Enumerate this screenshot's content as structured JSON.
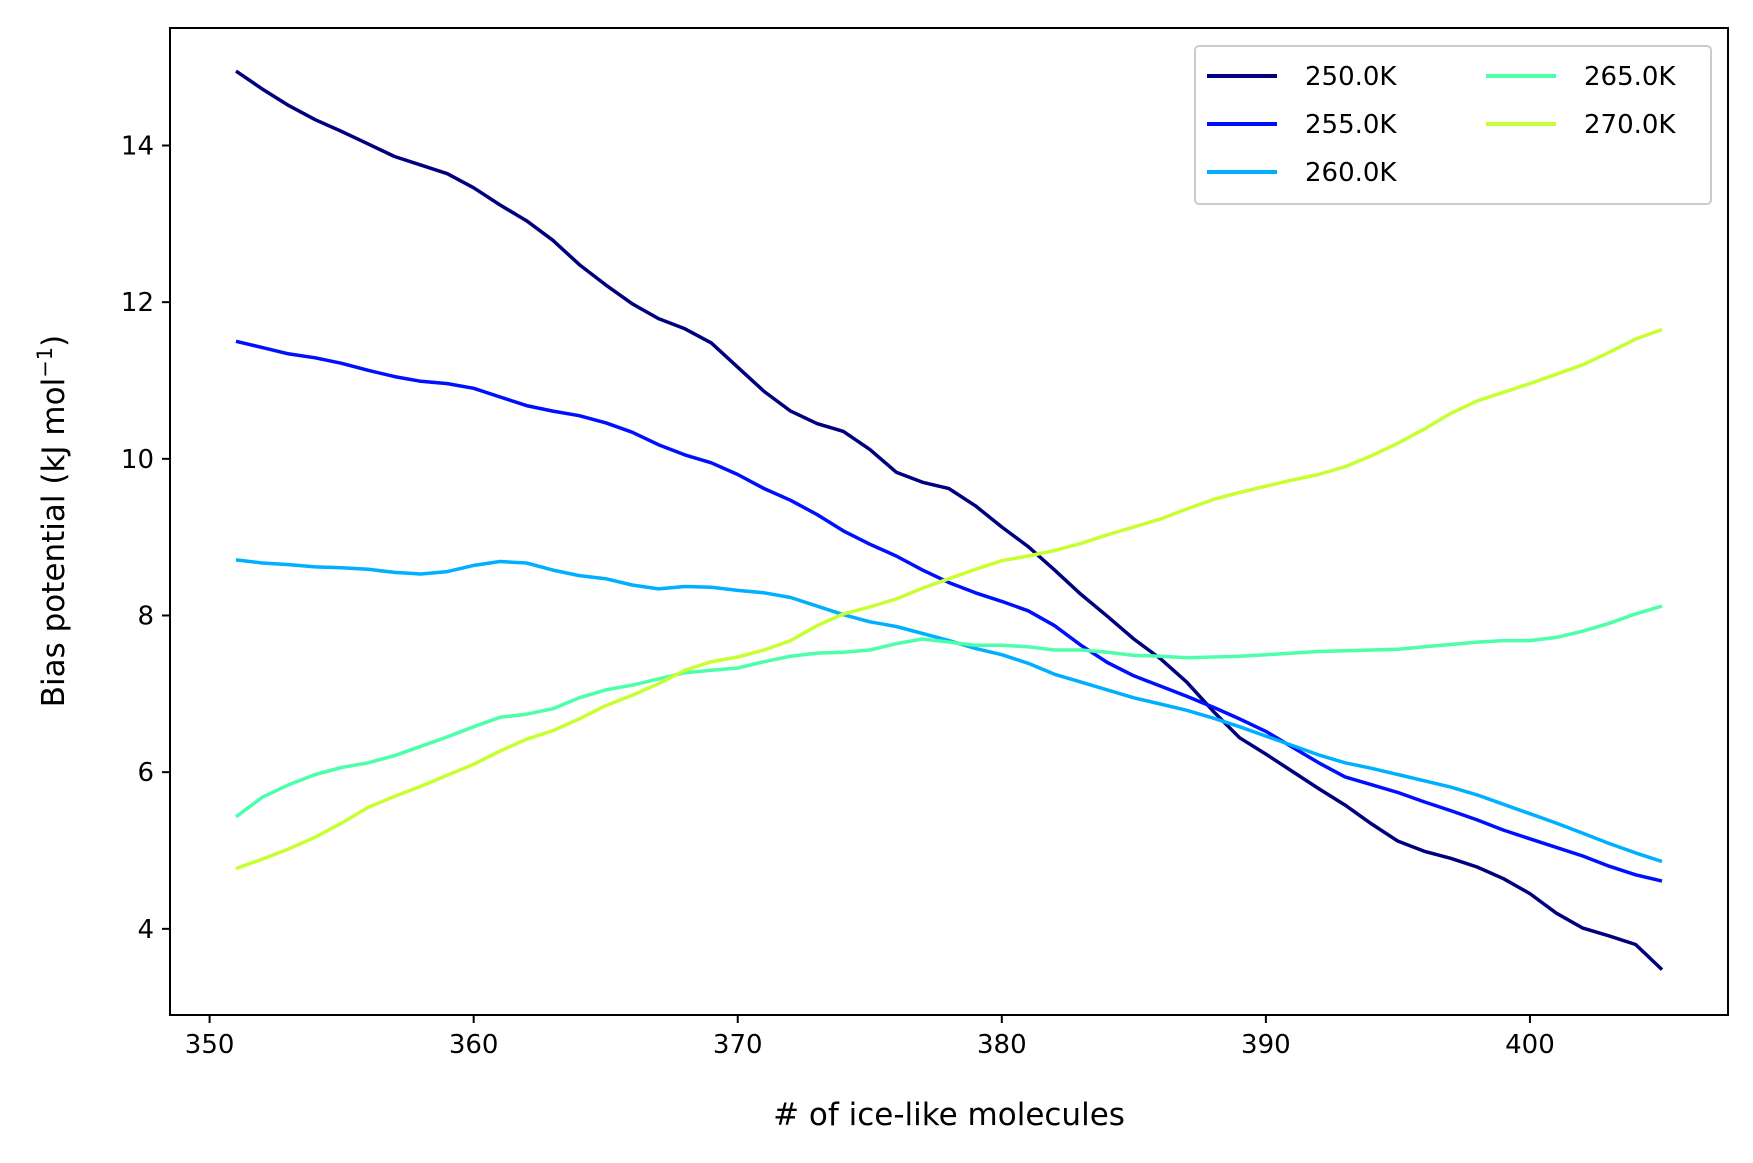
{
  "chart_data": {
    "type": "line",
    "xlabel": "# of ice-like molecules",
    "ylabel": "Bias potential (kJ mol",
    "ylabel_superscript": "−1",
    "ylabel_suffix": ")",
    "xlim": [
      348.5,
      407.5
    ],
    "ylim": [
      2.9,
      15.5
    ],
    "xticks": [
      "350",
      "360",
      "370",
      "380",
      "390",
      "400"
    ],
    "yticks": [
      "4",
      "6",
      "8",
      "10",
      "12",
      "14"
    ],
    "grid": false,
    "legend_position": "top-right",
    "legend_columns": 2,
    "x": [
      351,
      352,
      353,
      354,
      355,
      356,
      357,
      358,
      359,
      360,
      361,
      362,
      363,
      364,
      365,
      366,
      367,
      368,
      369,
      370,
      371,
      372,
      373,
      374,
      375,
      376,
      377,
      378,
      379,
      380,
      381,
      382,
      383,
      384,
      385,
      386,
      387,
      388,
      389,
      390,
      391,
      392,
      393,
      394,
      395,
      396,
      397,
      398,
      399,
      400,
      401,
      402,
      403,
      404,
      405
    ],
    "series": [
      {
        "name": "250.0K",
        "color": "#00007f",
        "values": [
          14.95,
          14.72,
          14.51,
          14.33,
          14.18,
          14.02,
          13.86,
          13.75,
          13.64,
          13.46,
          13.24,
          13.04,
          12.79,
          12.48,
          12.22,
          11.98,
          11.79,
          11.66,
          11.48,
          11.17,
          10.86,
          10.61,
          10.45,
          10.35,
          10.12,
          9.83,
          9.7,
          9.62,
          9.4,
          9.13,
          8.88,
          8.58,
          8.27,
          7.99,
          7.7,
          7.45,
          7.15,
          6.78,
          6.44,
          6.23,
          6.01,
          5.79,
          5.58,
          5.34,
          5.12,
          4.99,
          4.9,
          4.79,
          4.64,
          4.45,
          4.2,
          4.01,
          3.91,
          3.8,
          3.48
        ]
      },
      {
        "name": "255.0K",
        "color": "#0010ff",
        "values": [
          11.5,
          11.42,
          11.34,
          11.29,
          11.22,
          11.13,
          11.05,
          10.99,
          10.96,
          10.9,
          10.79,
          10.68,
          10.61,
          10.55,
          10.46,
          10.34,
          10.18,
          10.05,
          9.95,
          9.8,
          9.62,
          9.47,
          9.29,
          9.08,
          8.91,
          8.76,
          8.58,
          8.42,
          8.29,
          8.18,
          8.06,
          7.87,
          7.62,
          7.4,
          7.23,
          7.1,
          6.97,
          6.83,
          6.68,
          6.52,
          6.32,
          6.12,
          5.94,
          5.84,
          5.74,
          5.62,
          5.51,
          5.39,
          5.26,
          5.15,
          5.04,
          4.93,
          4.8,
          4.69,
          4.61
        ]
      },
      {
        "name": "260.0K",
        "color": "#00b0ff",
        "values": [
          8.71,
          8.67,
          8.65,
          8.62,
          8.61,
          8.59,
          8.55,
          8.53,
          8.56,
          8.64,
          8.69,
          8.67,
          8.58,
          8.51,
          8.47,
          8.39,
          8.34,
          8.37,
          8.36,
          8.32,
          8.29,
          8.23,
          8.12,
          8.01,
          7.92,
          7.86,
          7.77,
          7.68,
          7.58,
          7.5,
          7.39,
          7.25,
          7.15,
          7.05,
          6.95,
          6.87,
          6.79,
          6.69,
          6.58,
          6.46,
          6.34,
          6.22,
          6.12,
          6.05,
          5.97,
          5.89,
          5.81,
          5.71,
          5.59,
          5.47,
          5.35,
          5.22,
          5.09,
          4.97,
          4.86
        ]
      },
      {
        "name": "265.0K",
        "color": "#4dffaa",
        "values": [
          5.43,
          5.68,
          5.84,
          5.97,
          6.06,
          6.12,
          6.21,
          6.33,
          6.45,
          6.58,
          6.7,
          6.74,
          6.81,
          6.95,
          7.05,
          7.11,
          7.19,
          7.27,
          7.3,
          7.33,
          7.41,
          7.48,
          7.52,
          7.53,
          7.56,
          7.64,
          7.7,
          7.66,
          7.62,
          7.62,
          7.6,
          7.56,
          7.56,
          7.53,
          7.49,
          7.48,
          7.46,
          7.47,
          7.48,
          7.5,
          7.52,
          7.54,
          7.55,
          7.56,
          7.57,
          7.6,
          7.63,
          7.66,
          7.68,
          7.68,
          7.72,
          7.8,
          7.9,
          8.02,
          8.12
        ]
      },
      {
        "name": "270.0K",
        "color": "#c8ff30",
        "values": [
          4.77,
          4.89,
          5.02,
          5.17,
          5.35,
          5.55,
          5.69,
          5.82,
          5.96,
          6.1,
          6.27,
          6.42,
          6.53,
          6.68,
          6.85,
          6.98,
          7.13,
          7.3,
          7.41,
          7.47,
          7.56,
          7.68,
          7.87,
          8.02,
          8.11,
          8.21,
          8.35,
          8.47,
          8.59,
          8.7,
          8.76,
          8.83,
          8.92,
          9.03,
          9.13,
          9.23,
          9.36,
          9.48,
          9.57,
          9.65,
          9.73,
          9.8,
          9.9,
          10.04,
          10.2,
          10.38,
          10.58,
          10.74,
          10.85,
          10.96,
          11.08,
          11.2,
          11.36,
          11.53,
          11.65
        ]
      }
    ]
  }
}
